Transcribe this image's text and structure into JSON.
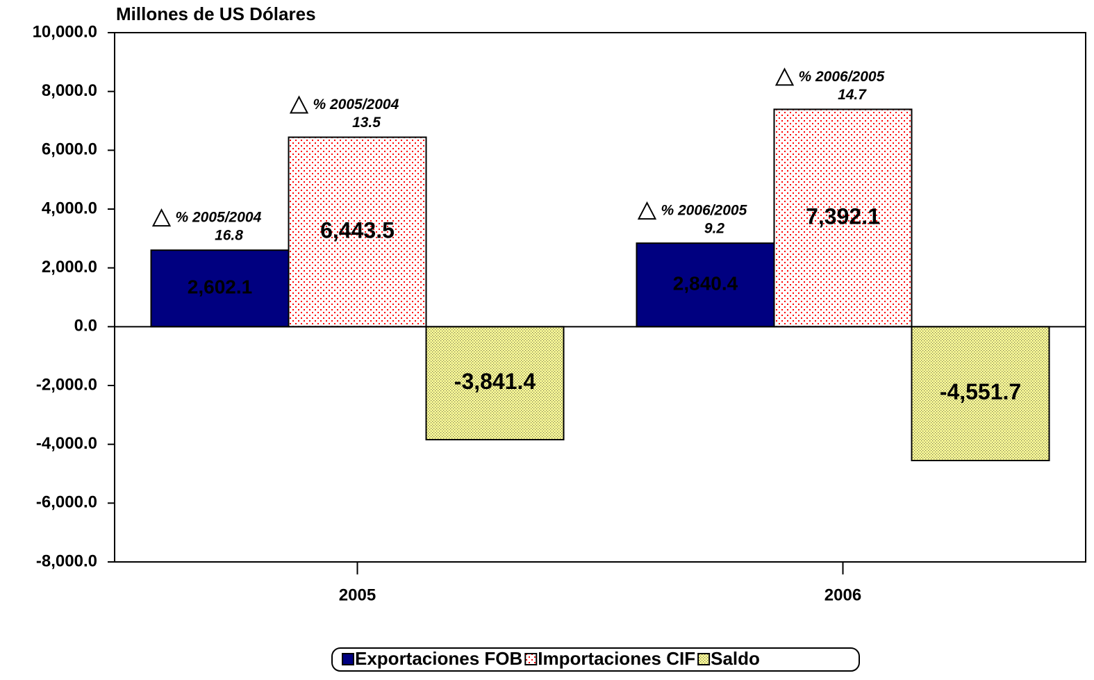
{
  "chart_data": {
    "type": "bar",
    "y_label": "Millones de US Dólares",
    "categories": [
      "2005",
      "2006"
    ],
    "series": [
      {
        "name": "Exportaciones FOB",
        "color": "#000080",
        "values": [
          2602.1,
          2840.4
        ],
        "value_labels": [
          "2,602.1",
          "2,840.4"
        ],
        "change_labels": [
          "% 2005/2004",
          "% 2006/2005"
        ],
        "changes": [
          16.8,
          9.2
        ]
      },
      {
        "name": "Importaciones CIF",
        "color": "#ff0000",
        "values": [
          6443.5,
          7392.1
        ],
        "value_labels": [
          "6,443.5",
          "7,392.1"
        ],
        "change_labels": [
          "% 2005/2004",
          "% 2006/2005"
        ],
        "changes": [
          13.5,
          14.7
        ]
      },
      {
        "name": "Saldo",
        "color": "#ffff99",
        "values": [
          -3841.4,
          -4551.7
        ],
        "value_labels": [
          "-3,841.4",
          "-4,551.7"
        ]
      }
    ],
    "ylim": [
      -8000,
      10000
    ],
    "yticks": [
      {
        "value": -8000,
        "label": "-8,000.0"
      },
      {
        "value": -6000,
        "label": "-6,000.0"
      },
      {
        "value": -4000,
        "label": "-4,000.0"
      },
      {
        "value": -2000,
        "label": "-2,000.0"
      },
      {
        "value": 0,
        "label": "0.0"
      },
      {
        "value": 2000,
        "label": "2,000.0"
      },
      {
        "value": 4000,
        "label": "4,000.0"
      },
      {
        "value": 6000,
        "label": "6,000.0"
      },
      {
        "value": 8000,
        "label": "8,000.0"
      },
      {
        "value": 10000,
        "label": "10,000.0"
      }
    ],
    "legend": "bottom"
  }
}
